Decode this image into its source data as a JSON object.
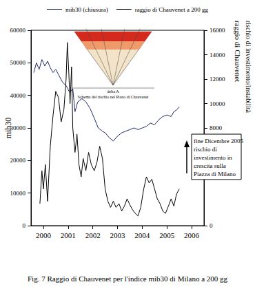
{
  "chart_data": {
    "type": "line",
    "caption": "Fig. 7 Raggio di Chauvenet per l'indice mib30 di Milano a 200 gg",
    "ylabel": "mib30",
    "y2label": [
      "raggio di Chauvenet",
      "rischio di investimento/instabilità"
    ],
    "annotation": [
      "fine Dicembre 2005",
      "rischio di",
      "investimento in",
      "crescita sulla",
      "Piazza di Milano"
    ],
    "inset": {
      "title": "Schema del rischio nel Piano di Chauvenet",
      "axis_label": "delta A"
    },
    "xlim": [
      2000,
      2007
    ],
    "xticks": [
      {
        "value": 2000.5,
        "label": "2000"
      },
      {
        "value": 2001.5,
        "label": "2001"
      },
      {
        "value": 2002.5,
        "label": "2002"
      },
      {
        "value": 2003.5,
        "label": "2003"
      },
      {
        "value": 2004.5,
        "label": "2004"
      },
      {
        "value": 2005.5,
        "label": "2005"
      },
      {
        "value": 2006.5,
        "label": "2006"
      }
    ],
    "ylim": [
      0,
      60000
    ],
    "yticks": [
      0,
      10000,
      20000,
      30000,
      40000,
      50000,
      60000
    ],
    "y2lim": [
      0,
      16000
    ],
    "y2ticks": [
      0,
      8000,
      10000,
      12000,
      14000,
      16000
    ],
    "grid": false,
    "legend": "top",
    "series": [
      {
        "name": "mib30 (chiusura)",
        "color": "#1f2a6b",
        "axis": "y",
        "x": [
          2000.11,
          2000.22,
          2000.33,
          2000.44,
          2000.56,
          2000.67,
          2000.78,
          2000.89,
          2001.0,
          2001.14,
          2001.28,
          2001.42,
          2001.56,
          2001.69,
          2001.78,
          2001.89,
          2002.06,
          2002.22,
          2002.39,
          2002.56,
          2002.72,
          2002.89,
          2003.0,
          2003.17,
          2003.33,
          2003.5,
          2003.67,
          2003.83,
          2004.0,
          2004.17,
          2004.33,
          2004.5,
          2004.67,
          2004.83,
          2005.0,
          2005.17,
          2005.33,
          2005.5,
          2005.67,
          2005.78,
          2005.89,
          2006.0
        ],
        "values": [
          47000,
          50000,
          48000,
          51000,
          49000,
          50500,
          48500,
          47000,
          48000,
          46000,
          44000,
          43000,
          41000,
          42000,
          35000,
          38000,
          39000,
          38000,
          36000,
          33000,
          30000,
          29000,
          28500,
          27000,
          26000,
          27500,
          28500,
          29000,
          29500,
          30000,
          29500,
          30000,
          30500,
          31500,
          31000,
          32500,
          33500,
          34000,
          33500,
          35000,
          35500,
          36500
        ]
      },
      {
        "name": "raggio di Chauvenet a 200 gg",
        "color": "#000000",
        "axis": "y2",
        "x": [
          2000.36,
          2000.44,
          2000.5,
          2000.58,
          2000.67,
          2000.78,
          2000.89,
          2001.0,
          2001.11,
          2001.22,
          2001.33,
          2001.42,
          2001.47,
          2001.53,
          2001.58,
          2001.64,
          2001.69,
          2001.78,
          2001.86,
          2001.94,
          2002.03,
          2002.11,
          2002.22,
          2002.33,
          2002.44,
          2002.56,
          2002.67,
          2002.78,
          2002.89,
          2003.0,
          2003.11,
          2003.22,
          2003.33,
          2003.44,
          2003.56,
          2003.67,
          2003.78,
          2003.89,
          2004.0,
          2004.11,
          2004.22,
          2004.33,
          2004.44,
          2004.56,
          2004.67,
          2004.78,
          2004.89,
          2005.0,
          2005.11,
          2005.22,
          2005.33,
          2005.44,
          2005.56,
          2005.67,
          2005.78,
          2005.89,
          2006.0
        ],
        "values": [
          1800,
          4500,
          3000,
          5000,
          2000,
          6500,
          9000,
          11000,
          10500,
          8500,
          9500,
          12000,
          15000,
          12500,
          10000,
          13000,
          8000,
          6000,
          7500,
          5000,
          4000,
          5500,
          4500,
          6000,
          5000,
          4500,
          5200,
          6500,
          5500,
          3000,
          2000,
          1500,
          2000,
          1500,
          1800,
          1200,
          1600,
          2200,
          1700,
          1300,
          1000,
          800,
          1500,
          3000,
          4000,
          3500,
          3800,
          3000,
          2200,
          1800,
          1200,
          1000,
          1600,
          2200,
          1600,
          2600,
          3000
        ]
      }
    ]
  }
}
